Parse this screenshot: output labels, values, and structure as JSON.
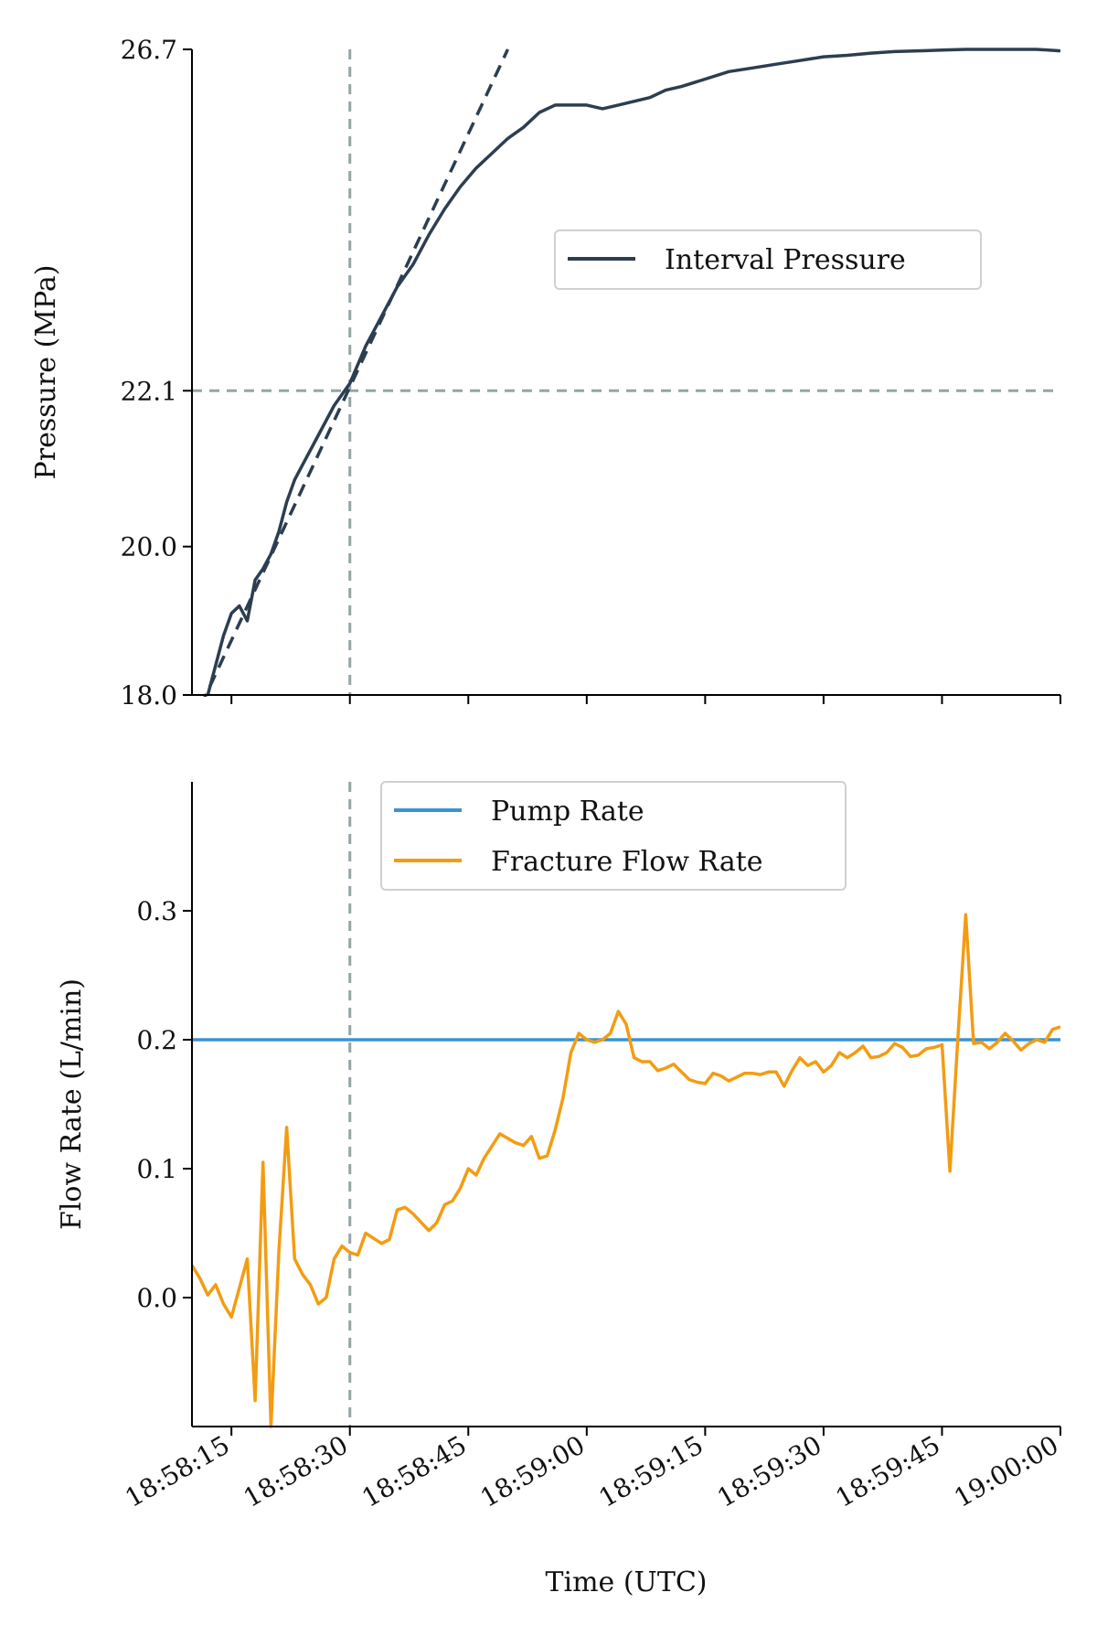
{
  "chart_data": [
    {
      "type": "line",
      "ylabel": "Pressure (MPa)",
      "xlabel": "",
      "ylim": [
        18.0,
        26.7
      ],
      "yticks": [
        "18.0",
        "20.0",
        "22.1",
        "26.7"
      ],
      "xlim": [
        "18:58:10",
        "19:00:00"
      ],
      "grid": false,
      "legend_placement": "center-right",
      "reference_lines": {
        "vertical_time": "18:58:30",
        "horizontal_value": 22.1
      },
      "tangent_fit": {
        "from": {
          "x": "18:58:10",
          "y": 17.6
        },
        "to": {
          "x": "18:58:50",
          "y": 26.7
        }
      },
      "series": [
        {
          "name": "Interval Pressure",
          "color": "#2c3e50",
          "x": [
            "18:58:12",
            "18:58:13",
            "18:58:14",
            "18:58:15",
            "18:58:16",
            "18:58:17",
            "18:58:18",
            "18:58:19",
            "18:58:20",
            "18:58:21",
            "18:58:22",
            "18:58:23",
            "18:58:24",
            "18:58:26",
            "18:58:28",
            "18:58:30",
            "18:58:32",
            "18:58:34",
            "18:58:36",
            "18:58:38",
            "18:58:40",
            "18:58:42",
            "18:58:44",
            "18:58:46",
            "18:58:48",
            "18:58:50",
            "18:58:52",
            "18:58:54",
            "18:58:56",
            "18:58:58",
            "18:59:00",
            "18:59:02",
            "18:59:04",
            "18:59:06",
            "18:59:08",
            "18:59:10",
            "18:59:12",
            "18:59:15",
            "18:59:18",
            "18:59:21",
            "18:59:24",
            "18:59:27",
            "18:59:30",
            "18:59:33",
            "18:59:36",
            "18:59:39",
            "18:59:42",
            "18:59:45",
            "18:59:48",
            "18:59:51",
            "18:59:54",
            "18:59:57",
            "19:00:00"
          ],
          "values": [
            18.0,
            18.4,
            18.8,
            19.1,
            19.2,
            19.0,
            19.55,
            19.7,
            19.9,
            20.2,
            20.6,
            20.9,
            21.1,
            21.5,
            21.9,
            22.2,
            22.7,
            23.1,
            23.5,
            23.8,
            24.2,
            24.55,
            24.85,
            25.1,
            25.3,
            25.5,
            25.65,
            25.85,
            25.95,
            25.95,
            25.95,
            25.9,
            25.95,
            26.0,
            26.05,
            26.15,
            26.2,
            26.3,
            26.4,
            26.45,
            26.5,
            26.55,
            26.6,
            26.62,
            26.65,
            26.67,
            26.68,
            26.69,
            26.7,
            26.7,
            26.7,
            26.7,
            26.68
          ]
        }
      ]
    },
    {
      "type": "line",
      "ylabel": "Flow Rate (L/min)",
      "xlabel": "Time (UTC)",
      "ylim": [
        -0.1,
        0.4
      ],
      "yticks": [
        "0.0",
        "0.1",
        "0.2",
        "0.3"
      ],
      "xlim": [
        "18:58:10",
        "19:00:00"
      ],
      "xticks": [
        "18:58:15",
        "18:58:30",
        "18:58:45",
        "18:59:00",
        "18:59:15",
        "18:59:30",
        "18:59:45",
        "19:00:00"
      ],
      "grid": false,
      "legend_placement": "top-center",
      "reference_lines": {
        "vertical_time": "18:58:30"
      },
      "series": [
        {
          "name": "Pump Rate",
          "color": "#3a93d2",
          "x": [
            "18:58:10",
            "19:00:00"
          ],
          "values": [
            0.2,
            0.2
          ]
        },
        {
          "name": "Fracture Flow Rate",
          "color": "#f39c12",
          "x": [
            "18:58:10",
            "18:58:11",
            "18:58:12",
            "18:58:13",
            "18:58:14",
            "18:58:15",
            "18:58:17",
            "18:58:18",
            "18:58:19",
            "18:58:20",
            "18:58:21",
            "18:58:22",
            "18:58:23",
            "18:58:24",
            "18:58:25",
            "18:58:26",
            "18:58:27",
            "18:58:28",
            "18:58:29",
            "18:58:30",
            "18:58:31",
            "18:58:32",
            "18:58:34",
            "18:58:35",
            "18:58:36",
            "18:58:37",
            "18:58:38",
            "18:58:40",
            "18:58:41",
            "18:58:42",
            "18:58:43",
            "18:58:44",
            "18:58:45",
            "18:58:46",
            "18:58:47",
            "18:58:49",
            "18:58:51",
            "18:58:52",
            "18:58:53",
            "18:58:54",
            "18:58:55",
            "18:58:56",
            "18:58:57",
            "18:58:58",
            "18:58:59",
            "18:59:00",
            "18:59:01",
            "18:59:02",
            "18:59:03",
            "18:59:04",
            "18:59:05",
            "18:59:06",
            "18:59:07",
            "18:59:08",
            "18:59:09",
            "18:59:10",
            "18:59:11",
            "18:59:12",
            "18:59:13",
            "18:59:14",
            "18:59:15",
            "18:59:16",
            "18:59:17",
            "18:59:18",
            "18:59:19",
            "18:59:20",
            "18:59:21",
            "18:59:22",
            "18:59:23",
            "18:59:24",
            "18:59:25",
            "18:59:26",
            "18:59:27",
            "18:59:28",
            "18:59:29",
            "18:59:30",
            "18:59:31",
            "18:59:32",
            "18:59:33",
            "18:59:34",
            "18:59:35",
            "18:59:36",
            "18:59:37",
            "18:59:38",
            "18:59:39",
            "18:59:40",
            "18:59:41",
            "18:59:42",
            "18:59:43",
            "18:59:44",
            "18:59:45",
            "18:59:46",
            "18:59:47",
            "18:59:48",
            "18:59:49",
            "18:59:50",
            "18:59:51",
            "18:59:52",
            "18:59:53",
            "18:59:54",
            "18:59:55",
            "18:59:56",
            "18:59:57",
            "18:59:58",
            "18:59:59",
            "19:00:00"
          ],
          "values": [
            0.025,
            0.015,
            0.002,
            0.01,
            -0.005,
            -0.015,
            0.03,
            -0.08,
            0.105,
            -0.1,
            0.035,
            0.132,
            0.03,
            0.018,
            0.01,
            -0.005,
            0.0,
            0.03,
            0.04,
            0.035,
            0.033,
            0.05,
            0.042,
            0.045,
            0.068,
            0.07,
            0.065,
            0.052,
            0.058,
            0.072,
            0.075,
            0.085,
            0.1,
            0.095,
            0.108,
            0.127,
            0.12,
            0.118,
            0.125,
            0.108,
            0.11,
            0.13,
            0.155,
            0.19,
            0.205,
            0.2,
            0.198,
            0.2,
            0.205,
            0.222,
            0.212,
            0.186,
            0.183,
            0.183,
            0.176,
            0.178,
            0.181,
            0.175,
            0.169,
            0.167,
            0.166,
            0.174,
            0.172,
            0.168,
            0.171,
            0.174,
            0.174,
            0.173,
            0.175,
            0.175,
            0.164,
            0.176,
            0.186,
            0.18,
            0.183,
            0.175,
            0.18,
            0.19,
            0.186,
            0.19,
            0.195,
            0.186,
            0.187,
            0.19,
            0.197,
            0.194,
            0.187,
            0.188,
            0.193,
            0.194,
            0.196,
            0.098,
            0.2,
            0.297,
            0.197,
            0.198,
            0.193,
            0.198,
            0.205,
            0.199,
            0.192,
            0.197,
            0.2,
            0.198,
            0.208,
            0.21
          ]
        }
      ]
    }
  ]
}
